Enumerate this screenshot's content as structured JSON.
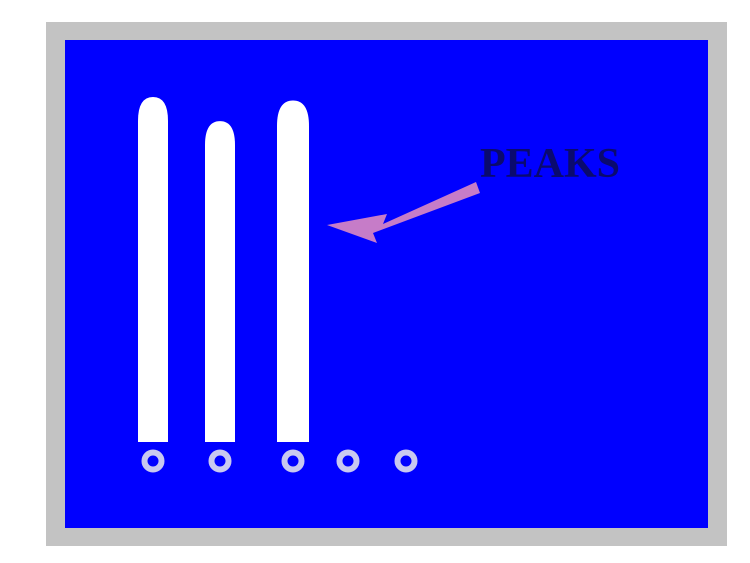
{
  "colors": {
    "frame": "#c3c3c3",
    "background": "#0000ff",
    "peak": "#ffffff",
    "well": "#c8c8f0",
    "arrow": "#c67cc8",
    "label": "#0a0a6e"
  },
  "label": {
    "text": "PEAKS"
  },
  "lanes": [
    {
      "name": "lane-1",
      "has_peak": true,
      "relative_height": 1.0
    },
    {
      "name": "lane-2",
      "has_peak": true,
      "relative_height": 0.93
    },
    {
      "name": "lane-3",
      "has_peak": true,
      "relative_height": 0.99
    },
    {
      "name": "lane-4",
      "has_peak": false
    },
    {
      "name": "lane-5",
      "has_peak": false
    }
  ]
}
